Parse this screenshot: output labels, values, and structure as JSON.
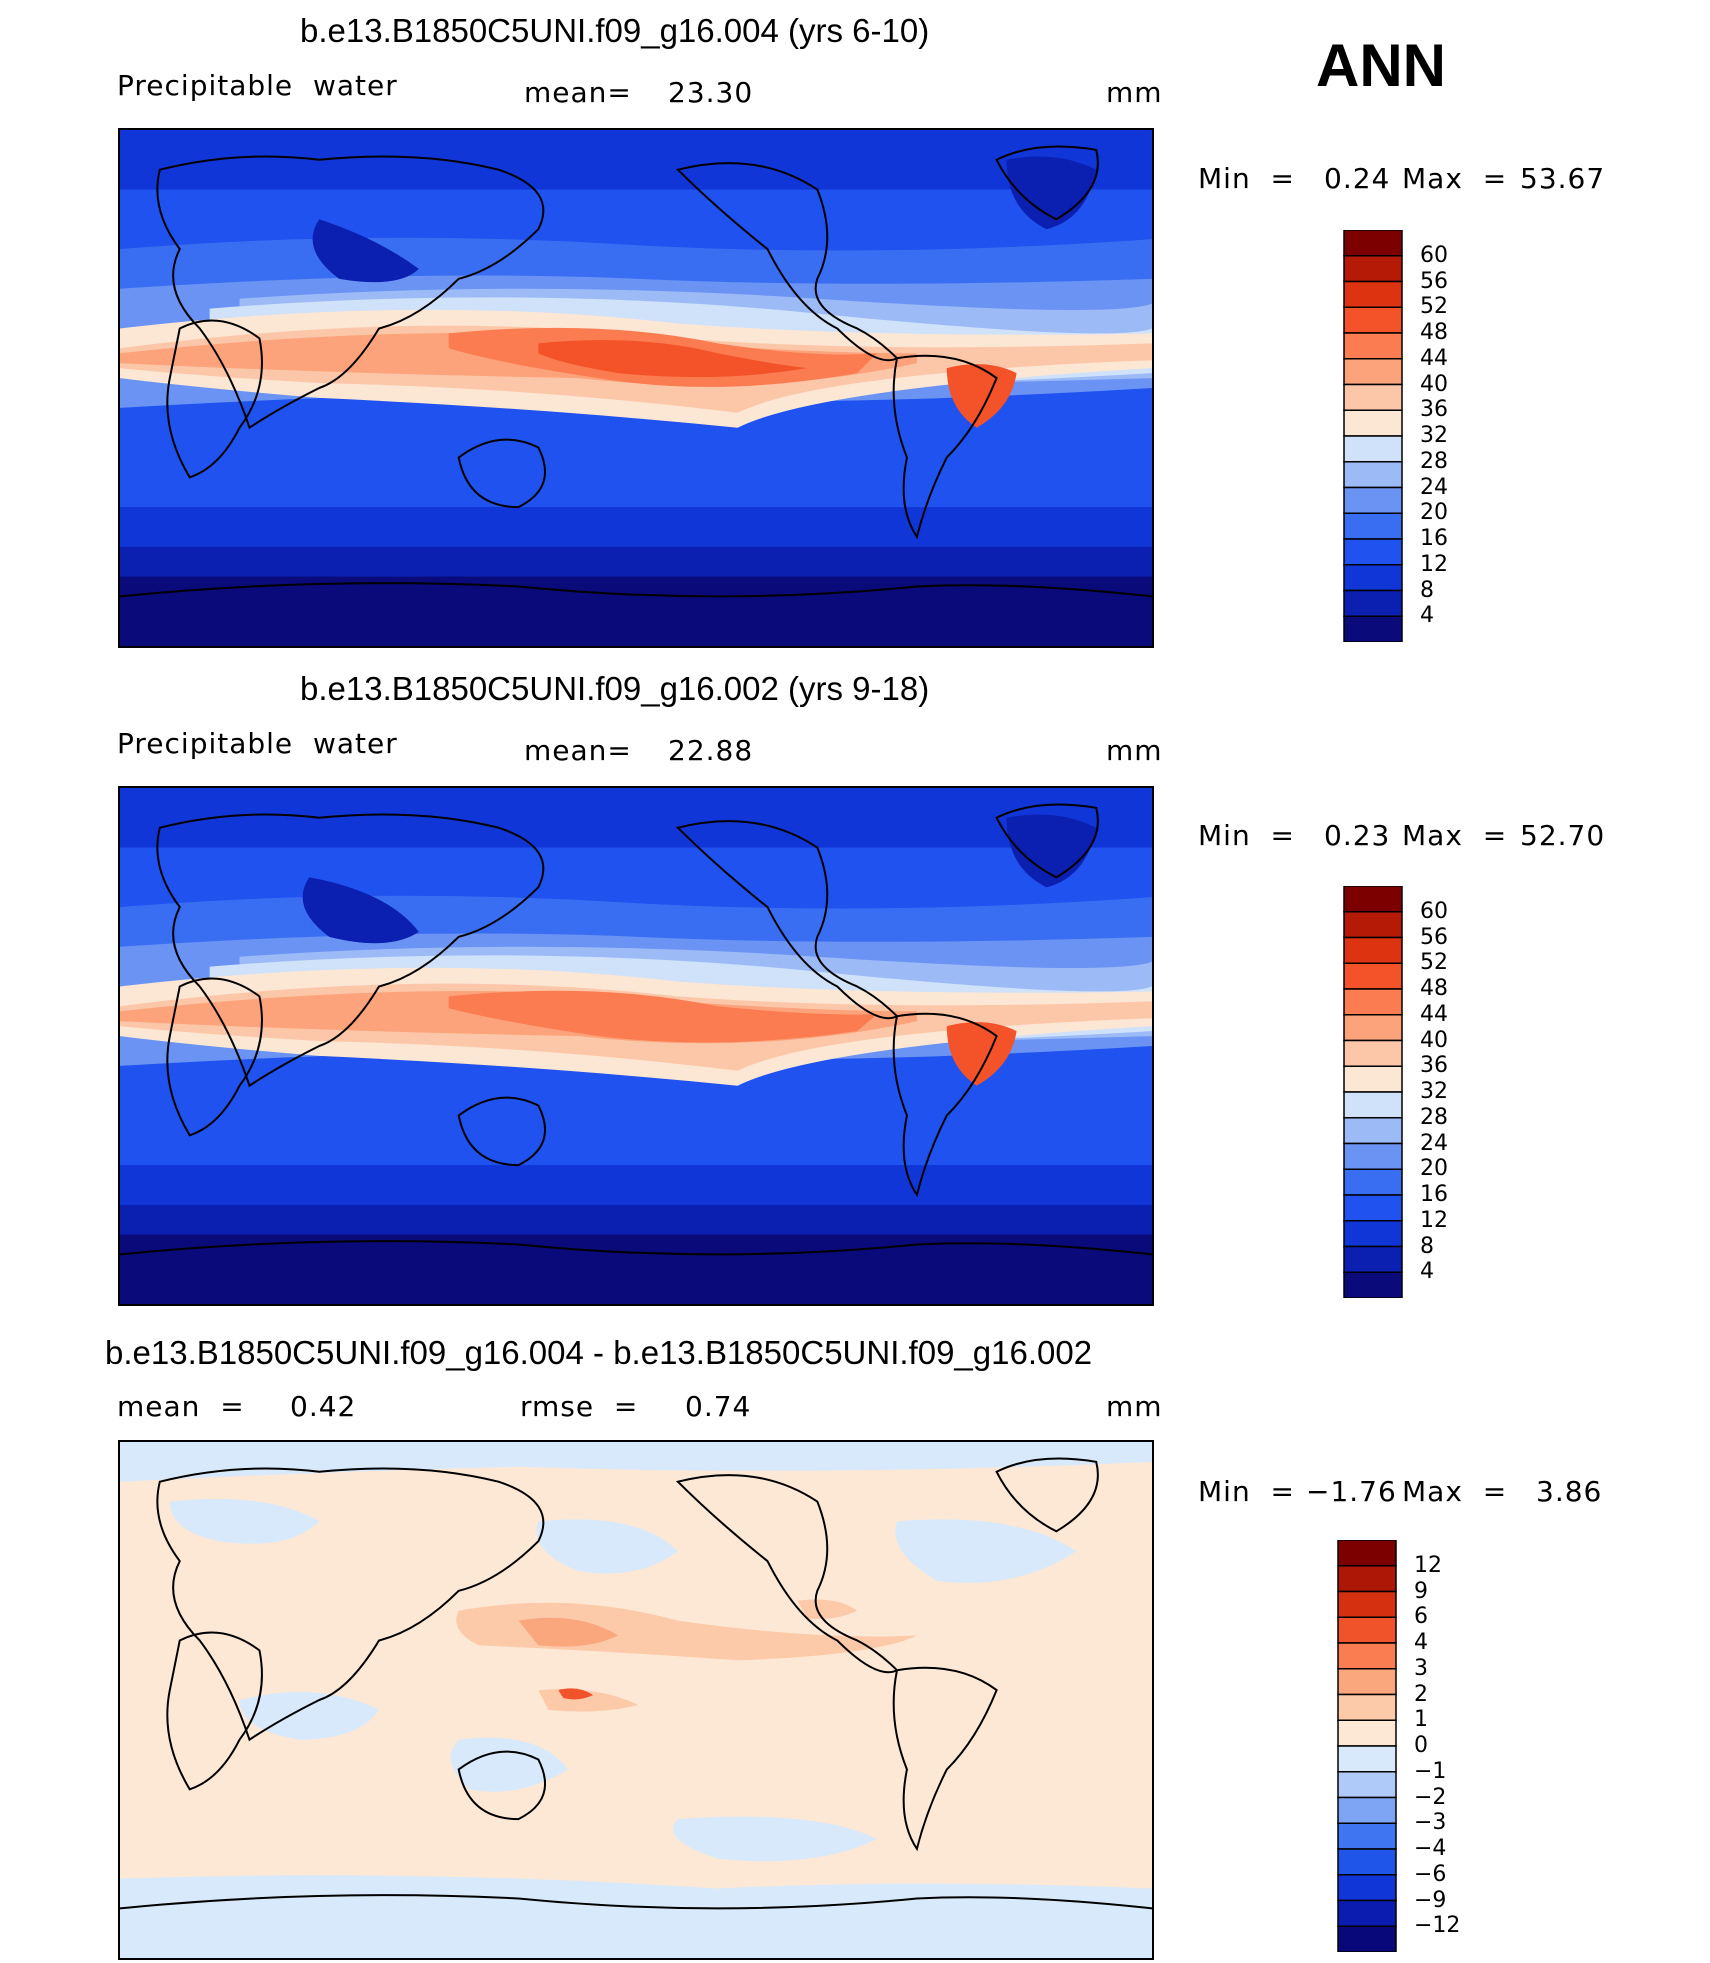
{
  "season": "ANN",
  "panels": [
    {
      "title": "b.e13.B1850C5UNI.f09_g16.004 (yrs 6-10)",
      "left_label": "Precipitable  water",
      "center_label": "mean=",
      "center_value": "23.30",
      "units": "mm",
      "min_label": "Min  =",
      "min_value": "0.24",
      "max_label": "Max  =",
      "max_value": "53.67",
      "colorbar_labels": [
        "60",
        "56",
        "52",
        "48",
        "44",
        "40",
        "36",
        "32",
        "28",
        "24",
        "20",
        "16",
        "12",
        "8",
        "4"
      ]
    },
    {
      "title": "b.e13.B1850C5UNI.f09_g16.002 (yrs 9-18)",
      "left_label": "Precipitable  water",
      "center_label": "mean=",
      "center_value": "22.88",
      "units": "mm",
      "min_label": "Min  =",
      "min_value": "0.23",
      "max_label": "Max  =",
      "max_value": "52.70",
      "colorbar_labels": [
        "60",
        "56",
        "52",
        "48",
        "44",
        "40",
        "36",
        "32",
        "28",
        "24",
        "20",
        "16",
        "12",
        "8",
        "4"
      ]
    },
    {
      "title": "b.e13.B1850C5UNI.f09_g16.004 - b.e13.B1850C5UNI.f09_g16.002",
      "left_label": "mean  =",
      "left_value": "0.42",
      "center_label": "rmse  =",
      "center_value": "0.74",
      "units": "mm",
      "min_label": "Min  =",
      "min_value": "−1.76",
      "max_label": "Max  =",
      "max_value": "3.86",
      "colorbar_labels": [
        "12",
        "9",
        "6",
        "4",
        "3",
        "2",
        "1",
        "0",
        "−1",
        "−2",
        "−3",
        "−4",
        "−6",
        "−9",
        "−12"
      ]
    }
  ],
  "colors": {
    "abs_scale": [
      "#0a0a7a",
      "#0b1fb0",
      "#1036d8",
      "#1f52ee",
      "#3a6ef2",
      "#6a93f4",
      "#9cbaf6",
      "#cfe2fa",
      "#fce6d4",
      "#fcc7a8",
      "#fca37c",
      "#fb7c50",
      "#f4532a",
      "#de3311",
      "#b51a07",
      "#7d0000"
    ],
    "diff_scale": [
      "#08087a",
      "#0b1db0",
      "#1036d8",
      "#2055ea",
      "#3f75f0",
      "#7ea4f4",
      "#afcaf8",
      "#d8e9fb",
      "#fde8d6",
      "#fccaa9",
      "#fba77e",
      "#fa7d52",
      "#f0522a",
      "#d5300f",
      "#ad1806",
      "#7d0000"
    ]
  }
}
